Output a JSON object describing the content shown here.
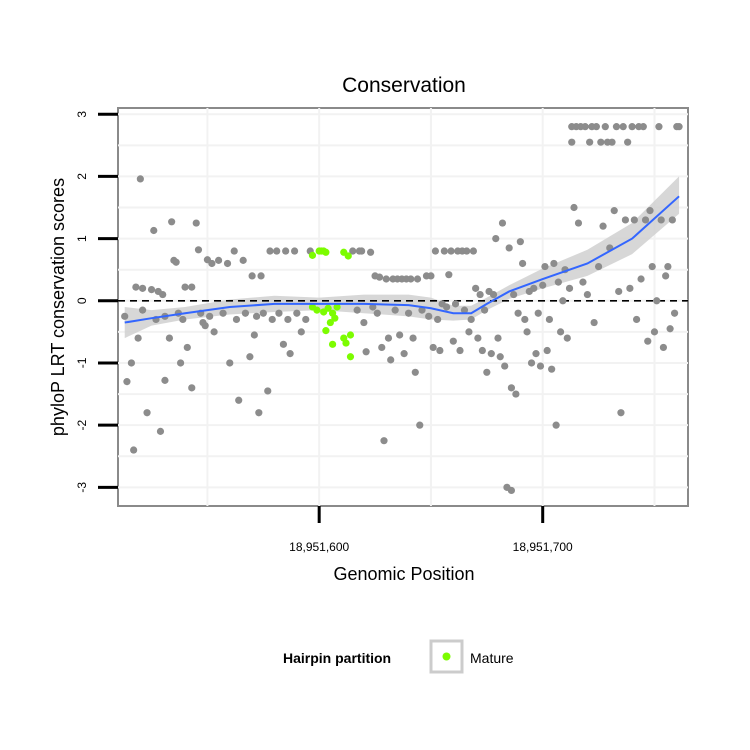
{
  "chart_data": {
    "type": "scatter",
    "title": "Conservation",
    "xlabel": "Genomic Position",
    "ylabel": "phyloP LRT conservation scores",
    "xlim": [
      18951510,
      18951765
    ],
    "ylim": [
      -3.3,
      3.1
    ],
    "x_ticks": [
      18951600,
      18951700
    ],
    "x_tick_labels": [
      "18,951,600",
      "18,951,700"
    ],
    "y_ticks": [
      -3,
      -2,
      -1,
      0,
      1,
      2,
      3
    ],
    "y_tick_labels": [
      "-3",
      "-2",
      "-1",
      "0",
      "1",
      "2",
      "3"
    ],
    "grid": true,
    "reference_line": {
      "y": 0,
      "style": "dashed",
      "color": "#000000"
    },
    "legend": {
      "title": "Hairpin partition",
      "entries": [
        {
          "label": "Mature",
          "color": "#7cfc00"
        }
      ],
      "position": "bottom"
    },
    "colors": {
      "points": "#8c8c8c",
      "mature": "#7cfc00",
      "smooth": "#3366ff",
      "band": "#d0d0d0"
    },
    "series": [
      {
        "name": "Mature",
        "color": "#7cfc00",
        "points": [
          [
            18951597,
            0.73
          ],
          [
            18951600,
            0.8
          ],
          [
            18951601,
            0.8
          ],
          [
            18951602,
            0.8
          ],
          [
            18951603,
            0.78
          ],
          [
            18951611,
            0.78
          ],
          [
            18951613,
            0.72
          ],
          [
            18951597,
            -0.1
          ],
          [
            18951599,
            -0.15
          ],
          [
            18951602,
            -0.18
          ],
          [
            18951604,
            -0.12
          ],
          [
            18951606,
            -0.2
          ],
          [
            18951608,
            -0.1
          ],
          [
            18951605,
            -0.35
          ],
          [
            18951607,
            -0.28
          ],
          [
            18951603,
            -0.48
          ],
          [
            18951611,
            -0.6
          ],
          [
            18951614,
            -0.55
          ],
          [
            18951606,
            -0.7
          ],
          [
            18951612,
            -0.68
          ],
          [
            18951614,
            -0.9
          ]
        ]
      },
      {
        "name": "",
        "color": "#8c8c8c",
        "points": [
          [
            18951513,
            -0.25
          ],
          [
            18951514,
            -1.3
          ],
          [
            18951516,
            -1.0
          ],
          [
            18951517,
            -2.4
          ],
          [
            18951518,
            0.22
          ],
          [
            18951519,
            -0.6
          ],
          [
            18951520,
            1.96
          ],
          [
            18951521,
            0.2
          ],
          [
            18951521,
            -0.15
          ],
          [
            18951523,
            -1.8
          ],
          [
            18951525,
            0.18
          ],
          [
            18951526,
            1.13
          ],
          [
            18951527,
            -0.3
          ],
          [
            18951528,
            0.15
          ],
          [
            18951529,
            -2.1
          ],
          [
            18951530,
            0.1
          ],
          [
            18951531,
            -1.28
          ],
          [
            18951531,
            -0.25
          ],
          [
            18951533,
            -0.6
          ],
          [
            18951534,
            1.27
          ],
          [
            18951535,
            0.65
          ],
          [
            18951536,
            0.62
          ],
          [
            18951537,
            -0.2
          ],
          [
            18951538,
            -1.0
          ],
          [
            18951539,
            -0.3
          ],
          [
            18951540,
            0.22
          ],
          [
            18951541,
            -0.75
          ],
          [
            18951543,
            0.22
          ],
          [
            18951543,
            -1.4
          ],
          [
            18951545,
            1.25
          ],
          [
            18951546,
            0.82
          ],
          [
            18951547,
            -0.2
          ],
          [
            18951548,
            -0.35
          ],
          [
            18951549,
            -0.4
          ],
          [
            18951550,
            0.66
          ],
          [
            18951551,
            -0.25
          ],
          [
            18951552,
            0.6
          ],
          [
            18951553,
            -0.5
          ],
          [
            18951555,
            0.65
          ],
          [
            18951557,
            -0.2
          ],
          [
            18951559,
            0.6
          ],
          [
            18951560,
            -1.0
          ],
          [
            18951562,
            0.8
          ],
          [
            18951563,
            -0.3
          ],
          [
            18951564,
            -1.6
          ],
          [
            18951566,
            0.65
          ],
          [
            18951567,
            -0.2
          ],
          [
            18951569,
            -0.9
          ],
          [
            18951570,
            0.4
          ],
          [
            18951571,
            -0.55
          ],
          [
            18951572,
            -0.25
          ],
          [
            18951573,
            -1.8
          ],
          [
            18951574,
            0.4
          ],
          [
            18951575,
            -0.2
          ],
          [
            18951577,
            -1.45
          ],
          [
            18951578,
            0.8
          ],
          [
            18951579,
            -0.3
          ],
          [
            18951581,
            0.8
          ],
          [
            18951582,
            -0.2
          ],
          [
            18951584,
            -0.7
          ],
          [
            18951585,
            0.8
          ],
          [
            18951586,
            -0.3
          ],
          [
            18951587,
            -0.85
          ],
          [
            18951589,
            0.8
          ],
          [
            18951590,
            -0.2
          ],
          [
            18951592,
            -0.5
          ],
          [
            18951594,
            -0.3
          ],
          [
            18951596,
            0.8
          ],
          [
            18951615,
            0.8
          ],
          [
            18951617,
            -0.15
          ],
          [
            18951618,
            0.8
          ],
          [
            18951619,
            0.8
          ],
          [
            18951620,
            -0.35
          ],
          [
            18951621,
            -0.82
          ],
          [
            18951623,
            0.78
          ],
          [
            18951624,
            -0.1
          ],
          [
            18951625,
            0.4
          ],
          [
            18951626,
            -0.2
          ],
          [
            18951627,
            0.38
          ],
          [
            18951628,
            -0.75
          ],
          [
            18951629,
            -2.25
          ],
          [
            18951630,
            0.35
          ],
          [
            18951631,
            -0.6
          ],
          [
            18951632,
            -0.95
          ],
          [
            18951633,
            0.35
          ],
          [
            18951634,
            -0.15
          ],
          [
            18951635,
            0.35
          ],
          [
            18951636,
            -0.55
          ],
          [
            18951637,
            0.35
          ],
          [
            18951638,
            -0.85
          ],
          [
            18951639,
            0.35
          ],
          [
            18951640,
            -0.2
          ],
          [
            18951641,
            0.35
          ],
          [
            18951642,
            -0.6
          ],
          [
            18951643,
            -1.15
          ],
          [
            18951644,
            0.35
          ],
          [
            18951645,
            -2.0
          ],
          [
            18951646,
            -0.15
          ],
          [
            18951648,
            0.4
          ],
          [
            18951649,
            -0.25
          ],
          [
            18951650,
            0.4
          ],
          [
            18951651,
            -0.75
          ],
          [
            18951652,
            0.8
          ],
          [
            18951653,
            -0.3
          ],
          [
            18951654,
            -0.8
          ],
          [
            18951655,
            -0.05
          ],
          [
            18951656,
            0.8
          ],
          [
            18951657,
            -0.1
          ],
          [
            18951658,
            0.42
          ],
          [
            18951659,
            0.8
          ],
          [
            18951660,
            -0.65
          ],
          [
            18951661,
            -0.05
          ],
          [
            18951662,
            0.8
          ],
          [
            18951663,
            -0.8
          ],
          [
            18951664,
            0.8
          ],
          [
            18951665,
            -0.15
          ],
          [
            18951666,
            0.8
          ],
          [
            18951667,
            -0.5
          ],
          [
            18951668,
            -0.3
          ],
          [
            18951669,
            0.8
          ],
          [
            18951670,
            0.2
          ],
          [
            18951671,
            -0.6
          ],
          [
            18951672,
            0.1
          ],
          [
            18951673,
            -0.8
          ],
          [
            18951674,
            -0.15
          ],
          [
            18951675,
            -1.15
          ],
          [
            18951676,
            0.15
          ],
          [
            18951677,
            -0.85
          ],
          [
            18951678,
            0.1
          ],
          [
            18951679,
            1.0
          ],
          [
            18951680,
            -0.6
          ],
          [
            18951681,
            -0.9
          ],
          [
            18951682,
            1.25
          ],
          [
            18951683,
            -1.05
          ],
          [
            18951684,
            -3.0
          ],
          [
            18951685,
            0.85
          ],
          [
            18951686,
            -3.05
          ],
          [
            18951686,
            -1.4
          ],
          [
            18951687,
            0.1
          ],
          [
            18951688,
            -1.5
          ],
          [
            18951689,
            -0.2
          ],
          [
            18951690,
            0.95
          ],
          [
            18951691,
            0.6
          ],
          [
            18951692,
            -0.3
          ],
          [
            18951693,
            -0.5
          ],
          [
            18951694,
            0.15
          ],
          [
            18951695,
            -1.0
          ],
          [
            18951696,
            0.2
          ],
          [
            18951697,
            -0.85
          ],
          [
            18951698,
            -0.2
          ],
          [
            18951699,
            -1.05
          ],
          [
            18951700,
            0.25
          ],
          [
            18951701,
            0.55
          ],
          [
            18951702,
            -0.8
          ],
          [
            18951703,
            -0.3
          ],
          [
            18951704,
            -1.1
          ],
          [
            18951705,
            0.6
          ],
          [
            18951706,
            -2.0
          ],
          [
            18951707,
            0.3
          ],
          [
            18951708,
            -0.5
          ],
          [
            18951709,
            0.0
          ],
          [
            18951710,
            0.5
          ],
          [
            18951711,
            -0.6
          ],
          [
            18951712,
            0.2
          ],
          [
            18951713,
            2.55
          ],
          [
            18951713,
            2.8
          ],
          [
            18951714,
            1.5
          ],
          [
            18951715,
            2.8
          ],
          [
            18951716,
            1.25
          ],
          [
            18951717,
            2.8
          ],
          [
            18951718,
            0.3
          ],
          [
            18951719,
            2.8
          ],
          [
            18951720,
            0.1
          ],
          [
            18951721,
            2.55
          ],
          [
            18951722,
            2.8
          ],
          [
            18951723,
            -0.35
          ],
          [
            18951724,
            2.8
          ],
          [
            18951725,
            0.55
          ],
          [
            18951726,
            2.55
          ],
          [
            18951727,
            1.2
          ],
          [
            18951728,
            2.8
          ],
          [
            18951729,
            2.55
          ],
          [
            18951730,
            0.85
          ],
          [
            18951731,
            2.55
          ],
          [
            18951732,
            1.45
          ],
          [
            18951733,
            2.8
          ],
          [
            18951734,
            0.15
          ],
          [
            18951735,
            -1.8
          ],
          [
            18951736,
            2.8
          ],
          [
            18951737,
            1.3
          ],
          [
            18951738,
            2.55
          ],
          [
            18951739,
            0.2
          ],
          [
            18951740,
            2.8
          ],
          [
            18951741,
            1.3
          ],
          [
            18951742,
            -0.3
          ],
          [
            18951743,
            2.8
          ],
          [
            18951744,
            0.35
          ],
          [
            18951745,
            2.8
          ],
          [
            18951746,
            1.3
          ],
          [
            18951747,
            -0.65
          ],
          [
            18951748,
            1.45
          ],
          [
            18951749,
            0.55
          ],
          [
            18951750,
            -0.5
          ],
          [
            18951751,
            0.0
          ],
          [
            18951752,
            2.8
          ],
          [
            18951753,
            1.3
          ],
          [
            18951754,
            -0.75
          ],
          [
            18951755,
            0.4
          ],
          [
            18951756,
            0.55
          ],
          [
            18951757,
            -0.45
          ],
          [
            18951758,
            1.3
          ],
          [
            18951759,
            -0.2
          ],
          [
            18951760,
            2.8
          ],
          [
            18951761,
            2.8
          ]
        ]
      }
    ],
    "smooth": {
      "color": "#3366ff",
      "x": [
        18951513,
        18951525,
        18951540,
        18951560,
        18951580,
        18951600,
        18951620,
        18951640,
        18951650,
        18951660,
        18951668,
        18951675,
        18951685,
        18951700,
        18951720,
        18951740,
        18951761
      ],
      "y": [
        -0.35,
        -0.28,
        -0.2,
        -0.1,
        -0.05,
        -0.05,
        -0.05,
        -0.07,
        -0.12,
        -0.2,
        -0.2,
        -0.05,
        0.15,
        0.35,
        0.6,
        1.0,
        1.68
      ],
      "lower": [
        -0.6,
        -0.4,
        -0.3,
        -0.22,
        -0.18,
        -0.15,
        -0.2,
        -0.25,
        -0.3,
        -0.32,
        -0.3,
        -0.15,
        0.03,
        0.2,
        0.4,
        0.75,
        1.4
      ],
      "upper": [
        -0.1,
        -0.15,
        -0.1,
        0.02,
        0.08,
        0.05,
        0.1,
        0.1,
        0.05,
        -0.08,
        -0.08,
        0.05,
        0.25,
        0.52,
        0.82,
        1.25,
        2.0
      ]
    }
  }
}
